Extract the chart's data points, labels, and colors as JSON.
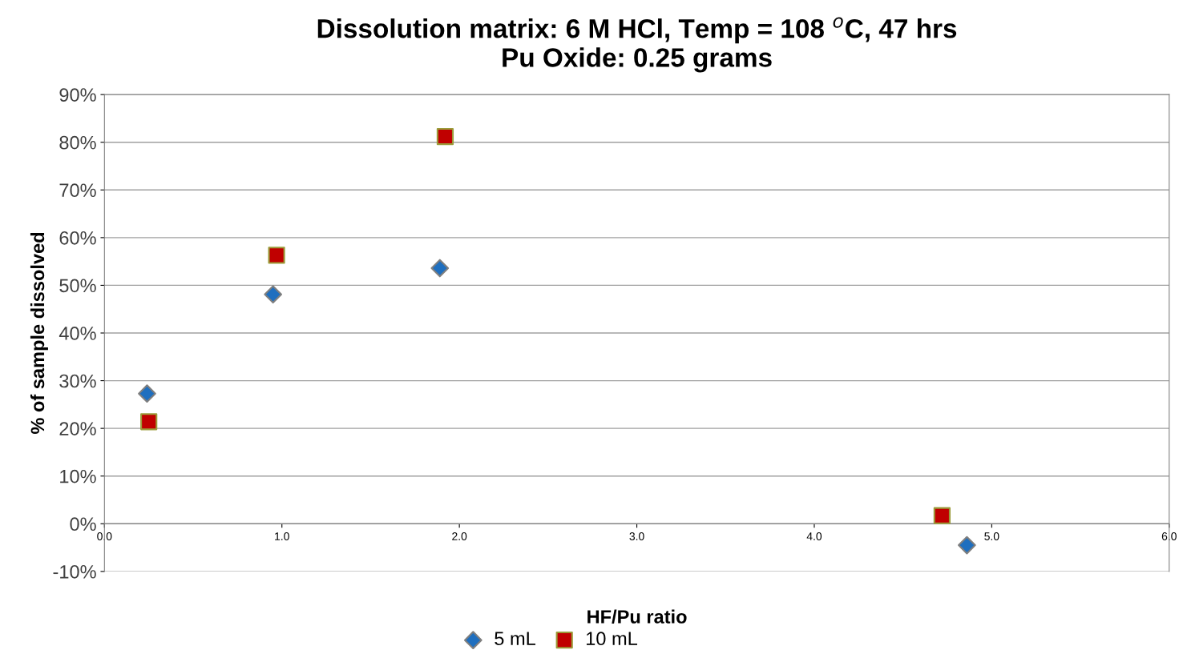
{
  "chart_data": {
    "type": "scatter",
    "title": "Dissolution matrix: 6 M HCl, Temp = 108 $^{o}$C, 47 hrs\nPu Oxide: 0.25 grams",
    "xlabel": "HF/Pu ratio",
    "ylabel": "% of sample dissolved",
    "series": [
      {
        "name": "5 mL",
        "color": "#1f6fbf",
        "marker": "diamond",
        "x": [
          0.24,
          0.95,
          1.89,
          4.86
        ],
        "values": [
          27.3,
          48.1,
          53.6,
          -4.5
        ]
      },
      {
        "name": "10 mL",
        "color": "#c00000",
        "marker": "square",
        "x": [
          0.25,
          0.97,
          1.92,
          4.72
        ],
        "values": [
          21.4,
          56.3,
          81.2,
          1.7
        ]
      }
    ],
    "xlim": [
      0,
      6
    ],
    "xticks": [
      {
        "value": 0,
        "label": "0.0"
      },
      {
        "value": 1,
        "label": "1.0"
      },
      {
        "value": 2,
        "label": "2.0"
      },
      {
        "value": 3,
        "label": "3.0"
      },
      {
        "value": 4,
        "label": "4.0"
      },
      {
        "value": 5,
        "label": "5.0"
      },
      {
        "value": 6,
        "label": "6.0"
      }
    ],
    "ylim": [
      -10,
      90
    ],
    "yticks": [
      {
        "value": -10,
        "label": "-10%"
      },
      {
        "value": 0,
        "label": "0%"
      },
      {
        "value": 10,
        "label": "10%"
      },
      {
        "value": 20,
        "label": "20%"
      },
      {
        "value": 30,
        "label": "30%"
      },
      {
        "value": 40,
        "label": "40%"
      },
      {
        "value": 50,
        "label": "50%"
      },
      {
        "value": 60,
        "label": "60%"
      },
      {
        "value": 70,
        "label": "70%"
      },
      {
        "value": 80,
        "label": "80%"
      },
      {
        "value": 90,
        "label": "90%"
      }
    ],
    "grid": "y",
    "legend": "bottom"
  }
}
